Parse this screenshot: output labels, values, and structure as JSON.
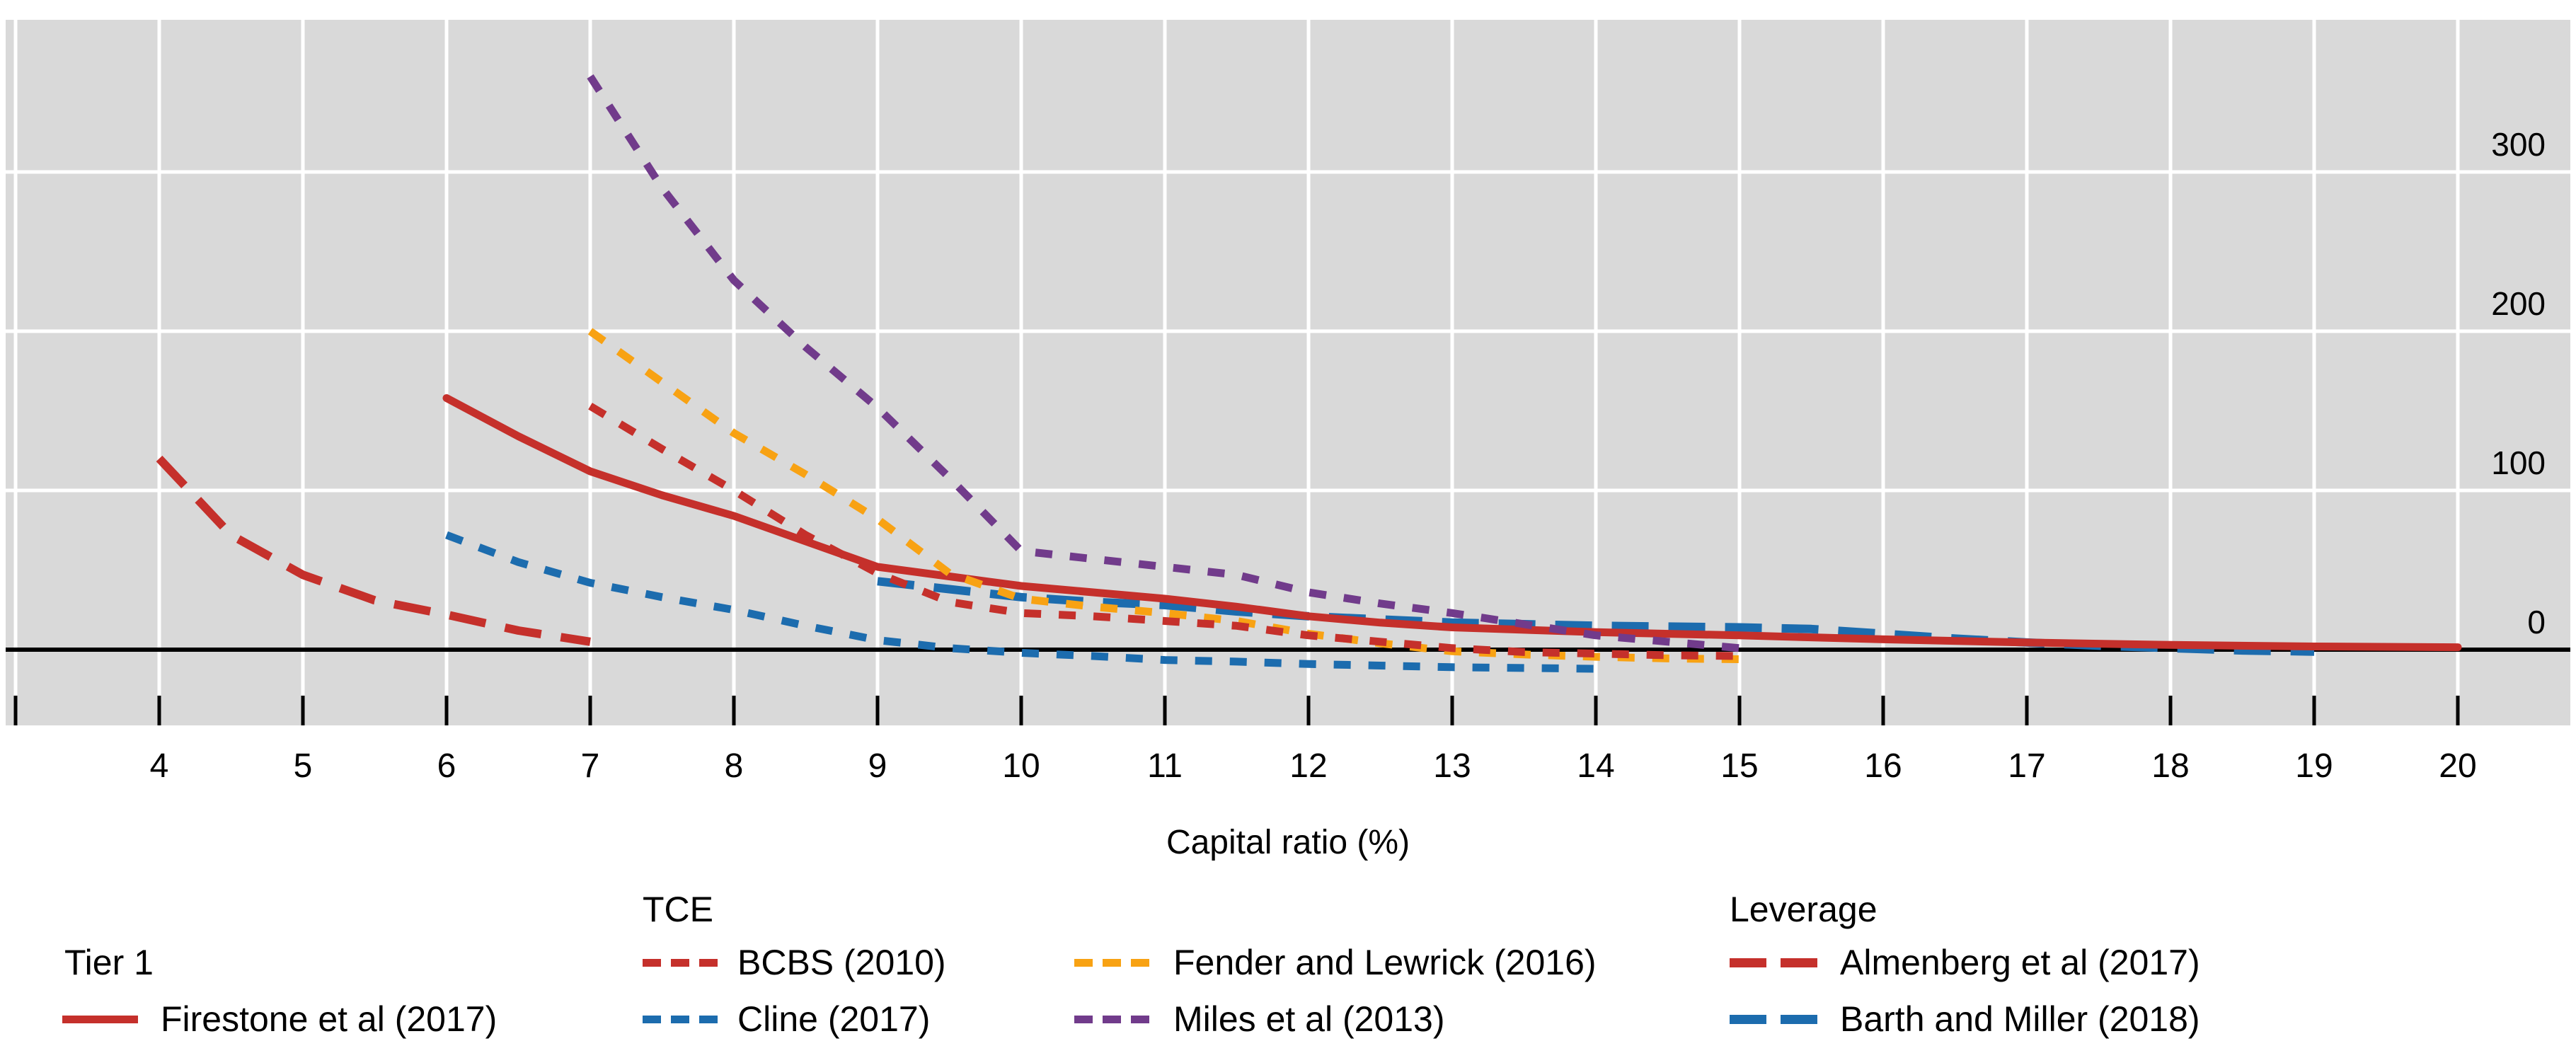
{
  "colors": {
    "plot_background": "#D9D9D9",
    "gridline": "#FFFFFF",
    "zero_line": "#000000",
    "tick": "#000000",
    "text": "#000000",
    "red": "#C5302B",
    "blue": "#1C6CAE",
    "orange": "#F8A213",
    "purple": "#713B8B"
  },
  "axis_title": "Capital ratio (%)",
  "chart_data": {
    "type": "line",
    "title": "",
    "xlabel": "Capital ratio (%)",
    "ylabel": "",
    "grid": true,
    "legend_position": "bottom",
    "x_axis": {
      "min": 3,
      "max": 20.8,
      "tick_values": [
        3,
        4,
        5,
        6,
        7,
        8,
        9,
        10,
        11,
        12,
        13,
        14,
        15,
        16,
        17,
        18,
        19,
        20
      ],
      "labeled_ticks": [
        "4",
        "5",
        "6",
        "7",
        "8",
        "9",
        "10",
        "11",
        "12",
        "13",
        "14",
        "15",
        "16",
        "17",
        "18",
        "19",
        "20"
      ]
    },
    "y_axis": {
      "side": "right",
      "range": [
        -47,
        395
      ],
      "gridline_values": [
        100,
        200,
        300
      ],
      "tick_labels": [
        "0",
        "100",
        "200",
        "300"
      ],
      "tick_label_values": [
        0,
        100,
        200,
        300
      ],
      "zero_line": true
    },
    "series": [
      {
        "name": "Cline (2017)",
        "group": "TCE",
        "style": "dotted",
        "color": "#1C6CAE",
        "points": [
          [
            6,
            72
          ],
          [
            6.5,
            55
          ],
          [
            7,
            42
          ],
          [
            7.5,
            33
          ],
          [
            8,
            25
          ],
          [
            8.5,
            15
          ],
          [
            9,
            6
          ],
          [
            9.5,
            1
          ],
          [
            10,
            -2
          ],
          [
            10.5,
            -4
          ],
          [
            11,
            -6.5
          ],
          [
            11.5,
            -7.5
          ],
          [
            12,
            -9
          ],
          [
            12.5,
            -10
          ],
          [
            13,
            -11
          ],
          [
            13.5,
            -11.5
          ],
          [
            14,
            -12
          ]
        ]
      },
      {
        "name": "Barth and Miller (2018)",
        "group": "Leverage",
        "style": "dashed",
        "color": "#1C6CAE",
        "points": [
          [
            9,
            43
          ],
          [
            9.5,
            38
          ],
          [
            10,
            33
          ],
          [
            10.5,
            30
          ],
          [
            11,
            28
          ],
          [
            11.5,
            24
          ],
          [
            12,
            21
          ],
          [
            12.5,
            19
          ],
          [
            13,
            17
          ],
          [
            13.5,
            16
          ],
          [
            14,
            15
          ],
          [
            15,
            14
          ],
          [
            15.5,
            13
          ],
          [
            16,
            10
          ],
          [
            16.5,
            7
          ],
          [
            17,
            4.5
          ],
          [
            17.5,
            2.5
          ],
          [
            18,
            1
          ],
          [
            18.5,
            -0.5
          ],
          [
            19,
            -1.2
          ]
        ]
      },
      {
        "name": "Firestone et al (2017)",
        "group": "Tier 1",
        "style": "solid",
        "color": "#C5302B",
        "points": [
          [
            6,
            158
          ],
          [
            6.5,
            134
          ],
          [
            7,
            112
          ],
          [
            7.5,
            97
          ],
          [
            8,
            84
          ],
          [
            8.5,
            68
          ],
          [
            9,
            52
          ],
          [
            9.5,
            46
          ],
          [
            10,
            40
          ],
          [
            10.5,
            36
          ],
          [
            11,
            32
          ],
          [
            11.5,
            27
          ],
          [
            12,
            21
          ],
          [
            12.5,
            17
          ],
          [
            13,
            14
          ],
          [
            14,
            11
          ],
          [
            15,
            9
          ],
          [
            16,
            6.5
          ],
          [
            17,
            4.5
          ],
          [
            18,
            3
          ],
          [
            19,
            2
          ],
          [
            20,
            1.5
          ]
        ]
      },
      {
        "name": "Fender and Lewrick (2016)",
        "group": "TCE",
        "style": "dotted",
        "color": "#F8A213",
        "points": [
          [
            7,
            200
          ],
          [
            7.5,
            168
          ],
          [
            8,
            136
          ],
          [
            8.5,
            110
          ],
          [
            9,
            82
          ],
          [
            9.5,
            48
          ],
          [
            10,
            32
          ],
          [
            10.5,
            27
          ],
          [
            11,
            23
          ],
          [
            11.5,
            18
          ],
          [
            12,
            10
          ],
          [
            12.5,
            4
          ],
          [
            13,
            -1
          ],
          [
            13.5,
            -3
          ],
          [
            14,
            -4.5
          ],
          [
            14.5,
            -5.5
          ],
          [
            15,
            -6
          ]
        ]
      },
      {
        "name": "BCBS (2010)",
        "group": "TCE",
        "style": "dotted",
        "color": "#C5302B",
        "points": [
          [
            7,
            153
          ],
          [
            7.5,
            126
          ],
          [
            8,
            100
          ],
          [
            8.5,
            72
          ],
          [
            9,
            48
          ],
          [
            9.5,
            30
          ],
          [
            10,
            23
          ],
          [
            10.5,
            21
          ],
          [
            11,
            18
          ],
          [
            11.5,
            15
          ],
          [
            12,
            9
          ],
          [
            12.5,
            5
          ],
          [
            13,
            1
          ],
          [
            13.5,
            -1.5
          ],
          [
            14,
            -2.5
          ],
          [
            14.5,
            -3.5
          ],
          [
            15,
            -4
          ]
        ]
      },
      {
        "name": "Almenberg et al (2017)",
        "group": "Leverage",
        "style": "dashed",
        "color": "#C5302B",
        "points": [
          [
            4,
            120
          ],
          [
            4.5,
            72
          ],
          [
            5,
            47
          ],
          [
            5.5,
            31
          ],
          [
            6,
            22
          ],
          [
            6.5,
            12
          ],
          [
            7,
            5
          ]
        ]
      },
      {
        "name": "Miles et al (2013)",
        "group": "TCE",
        "style": "dotted",
        "color": "#713B8B",
        "points": [
          [
            7,
            360
          ],
          [
            7.5,
            290
          ],
          [
            8,
            232
          ],
          [
            8.5,
            190
          ],
          [
            9,
            152
          ],
          [
            9.5,
            108
          ],
          [
            10,
            62
          ],
          [
            10.5,
            57
          ],
          [
            11,
            52
          ],
          [
            11.5,
            47
          ],
          [
            12,
            36
          ],
          [
            12.5,
            29
          ],
          [
            13,
            23
          ],
          [
            13.5,
            16
          ],
          [
            14,
            9
          ],
          [
            14.5,
            5
          ],
          [
            15,
            1
          ]
        ]
      }
    ]
  },
  "legend": {
    "groups": [
      {
        "header": "Tier 1",
        "items": [
          {
            "label": "Firestone et al (2017)",
            "style": "solid",
            "color": "#C5302B"
          }
        ]
      },
      {
        "header": "TCE",
        "items": [
          {
            "label": "BCBS (2010)",
            "style": "dotted",
            "color": "#C5302B"
          },
          {
            "label": "Cline (2017)",
            "style": "dotted",
            "color": "#1C6CAE"
          }
        ]
      },
      {
        "header": "",
        "items": [
          {
            "label": "Fender and Lewrick (2016)",
            "style": "dotted",
            "color": "#F8A213"
          },
          {
            "label": "Miles et al (2013)",
            "style": "dotted",
            "color": "#713B8B"
          }
        ]
      },
      {
        "header": "Leverage",
        "items": [
          {
            "label": "Almenberg et al (2017)",
            "style": "dashed",
            "color": "#C5302B"
          },
          {
            "label": "Barth and Miller (2018)",
            "style": "dashed",
            "color": "#1C6CAE"
          }
        ]
      }
    ]
  }
}
